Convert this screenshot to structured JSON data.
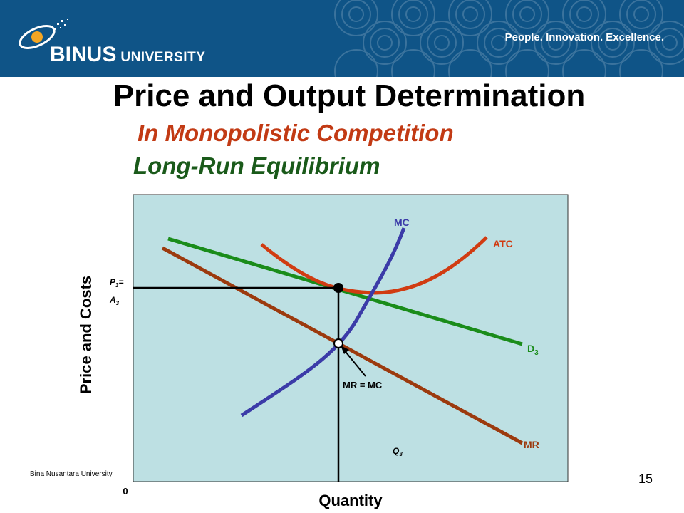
{
  "header": {
    "brand_name": "BINUS",
    "brand_suffix": "UNIVERSITY",
    "tagline": "People. Innovation. Excellence.",
    "banner_color": "#0f5487"
  },
  "slide": {
    "title": "Price and Output Determination",
    "subtitle": "In Monopolistic Competition",
    "subtitle2": "Long-Run Equilibrium"
  },
  "diagram": {
    "y_axis_label": "Price and Costs",
    "x_axis_label": "Quantity",
    "origin_label": "0",
    "price_label_top": "P",
    "price_label_top_sub": "3",
    "price_label_top_suffix": "=",
    "price_label_bottom": "A",
    "price_label_bottom_sub": "3",
    "quantity_label": "Q",
    "quantity_label_sub": "3",
    "curves": {
      "mc": "MC",
      "atc": "ATC",
      "demand": "D",
      "demand_sub": "3",
      "mr": "MR"
    },
    "annotation": "MR = MC",
    "colors": {
      "background": "#bde0e3",
      "mc": "#3b3ba8",
      "atc": "#d13c12",
      "demand": "#1a8c1a",
      "mr": "#9c3a0e"
    }
  },
  "footer": {
    "institution": "Bina Nusantara University",
    "page_number": "15"
  }
}
